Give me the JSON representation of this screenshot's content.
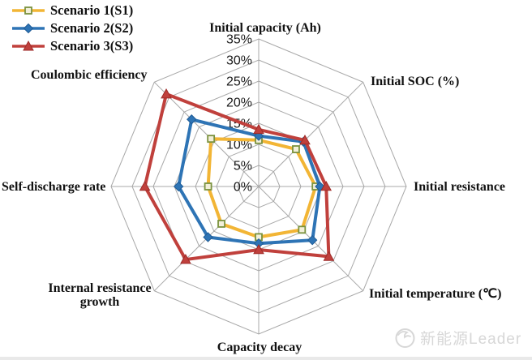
{
  "chart_data": {
    "type": "radar",
    "title": "",
    "unit": "%",
    "r_max": 35,
    "r_ticks": [
      "0%",
      "5%",
      "10%",
      "15%",
      "20%",
      "25%",
      "30%",
      "35%"
    ],
    "grid_color": "#a8a8a8",
    "legend_position": "top-left",
    "axes": [
      "Initial capacity (Ah)",
      "Initial SOC (%)",
      "Initial resistance",
      "Initial temperature (℃)",
      "Capacity decay",
      "Internal resistance growth",
      "Self-discharge rate",
      "Coulombic efficiency"
    ],
    "series": [
      {
        "name": "Scenario 1(S1)",
        "color": "#F2B535",
        "marker": "square",
        "marker_fill": "#F2EFD9",
        "marker_stroke": "#7A923E",
        "values": [
          11,
          12.5,
          13.5,
          14.5,
          12,
          12.5,
          12,
          16
        ]
      },
      {
        "name": "Scenario 2(S2)",
        "color": "#2E74B5",
        "marker": "diamond",
        "marker_fill": "#2E74B5",
        "marker_stroke": "#1F5C96",
        "values": [
          12,
          15,
          14.5,
          18,
          13.5,
          17,
          19,
          22.5
        ]
      },
      {
        "name": "Scenario 3(S3)",
        "color": "#C0403C",
        "marker": "triangle",
        "marker_fill": "#C0403C",
        "marker_stroke": "#9E2B28",
        "values": [
          13.5,
          15.5,
          16,
          23.5,
          15,
          24.5,
          27,
          31
        ]
      }
    ],
    "watermark": "新能源Leader"
  }
}
